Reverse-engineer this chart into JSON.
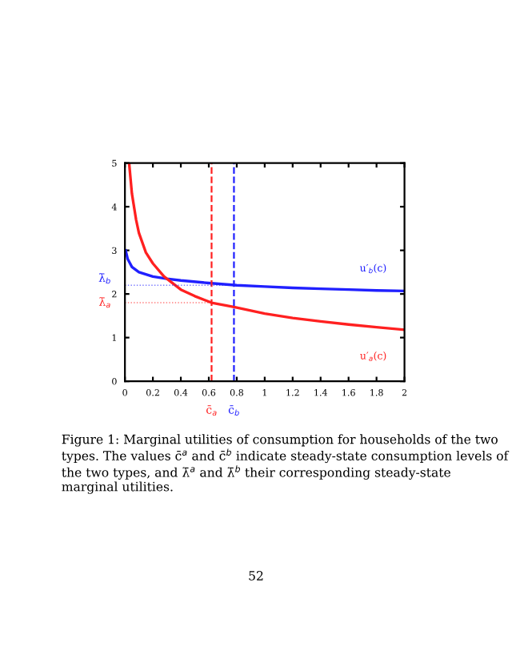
{
  "chart_data": {
    "type": "line",
    "xlim": [
      0,
      2
    ],
    "ylim": [
      0,
      5
    ],
    "xticks": [
      0,
      0.2,
      0.4,
      0.6,
      0.8,
      1,
      1.2,
      1.4,
      1.6,
      1.8,
      2
    ],
    "yticks": [
      0,
      1,
      2,
      3,
      4,
      5
    ],
    "series": [
      {
        "name": "u′$_{b}$(c)",
        "color": "#2020ff",
        "x": [
          0.005,
          0.02,
          0.05,
          0.1,
          0.2,
          0.3,
          0.4,
          0.6,
          0.8,
          1.0,
          1.2,
          1.4,
          1.6,
          1.8,
          2.0
        ],
        "values": [
          3.0,
          2.8,
          2.62,
          2.5,
          2.4,
          2.35,
          2.31,
          2.25,
          2.2,
          2.17,
          2.14,
          2.12,
          2.1,
          2.08,
          2.07
        ]
      },
      {
        "name": "u′$_{a}$(c)",
        "color": "#ff2020",
        "x": [
          0.03,
          0.05,
          0.08,
          0.1,
          0.15,
          0.2,
          0.28,
          0.4,
          0.5,
          0.62,
          0.78,
          1.0,
          1.2,
          1.4,
          1.6,
          1.8,
          2.0
        ],
        "values": [
          5.0,
          4.3,
          3.7,
          3.4,
          2.95,
          2.7,
          2.4,
          2.1,
          1.95,
          1.8,
          1.7,
          1.55,
          1.45,
          1.37,
          1.3,
          1.24,
          1.18
        ]
      }
    ],
    "ref_lines": [
      {
        "axis": "x",
        "value": 0.62,
        "label": "c̄$_{a}$",
        "color": "#ff2020",
        "line_style": "dashed"
      },
      {
        "axis": "x",
        "value": 0.78,
        "label": "c̄$_{b}$",
        "color": "#2020ff",
        "line_style": "dashed"
      },
      {
        "axis": "y",
        "value": 2.2,
        "label": "λ̄$_{b}$",
        "color": "#2020ff",
        "line_style": "dotted"
      },
      {
        "axis": "y",
        "value": 1.8,
        "label": "λ̄$_{a}$",
        "color": "#ff2020",
        "line_style": "dotted"
      }
    ],
    "grid": false,
    "legend": false,
    "line_style": "solid",
    "marker": "none",
    "annotations": [
      "Figure 1: Marginal utilities of consumption for households of the two types. The values c̄$^{a}$ and c̄$^{b}$ indicate steady-state consumption levels of the two types, and λ̄$^{a}$ and λ̄$^{b}$ their corresponding steady-state marginal utilities.",
      "52"
    ]
  }
}
